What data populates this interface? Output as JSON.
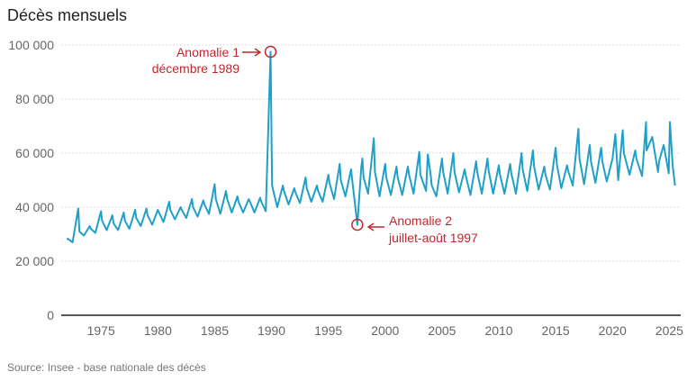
{
  "title": "Décès mensuels",
  "source": "Source: Insee - base nationale des décès",
  "colors": {
    "line": "#1fa0c8",
    "annotation": "#c0272d",
    "grid": "#dddddd",
    "axis": "#222222"
  },
  "chart_data": {
    "type": "line",
    "title": "Décès mensuels",
    "xlabel": "",
    "ylabel": "",
    "xlim": [
      1971.5,
      2026.0
    ],
    "ylim": [
      0,
      100000
    ],
    "grid": "horizontal",
    "x_ticks": [
      1975,
      1980,
      1985,
      1990,
      1995,
      2000,
      2005,
      2010,
      2015,
      2020,
      2025
    ],
    "y_ticks": [
      0,
      20000,
      40000,
      60000,
      80000,
      100000
    ],
    "y_tick_labels": [
      "0",
      "20 000",
      "40 000",
      "60 000",
      "80 000",
      "100 000"
    ],
    "series": [
      {
        "color": "#1fa0c8",
        "x": [
          1972.0,
          1972.5,
          1973.0,
          1973.1,
          1973.5,
          1974.0,
          1974.1,
          1974.5,
          1975.0,
          1975.1,
          1975.5,
          1976.0,
          1976.1,
          1976.5,
          1977.0,
          1977.1,
          1977.5,
          1978.0,
          1978.1,
          1978.5,
          1979.0,
          1979.1,
          1979.5,
          1980.0,
          1980.1,
          1980.5,
          1981.0,
          1981.1,
          1981.5,
          1982.0,
          1982.1,
          1982.5,
          1983.0,
          1983.1,
          1983.5,
          1984.0,
          1984.1,
          1984.5,
          1985.0,
          1985.1,
          1985.5,
          1986.0,
          1986.1,
          1986.5,
          1987.0,
          1987.1,
          1987.5,
          1988.0,
          1988.1,
          1988.5,
          1989.0,
          1989.1,
          1989.5,
          1989.92,
          1990.05,
          1990.5,
          1991.0,
          1991.1,
          1991.5,
          1992.0,
          1992.1,
          1992.5,
          1993.0,
          1993.1,
          1993.5,
          1994.0,
          1994.1,
          1994.5,
          1995.0,
          1995.1,
          1995.5,
          1996.0,
          1996.1,
          1996.5,
          1997.0,
          1997.1,
          1997.55,
          1997.9,
          1998.0,
          1998.1,
          1998.5,
          1999.0,
          1999.1,
          1999.5,
          2000.0,
          2000.1,
          2000.5,
          2001.0,
          2001.1,
          2001.5,
          2002.0,
          2002.1,
          2002.5,
          2003.0,
          2003.1,
          2003.6,
          2003.75,
          2004.0,
          2004.1,
          2004.5,
          2005.0,
          2005.1,
          2005.5,
          2006.0,
          2006.1,
          2006.5,
          2007.0,
          2007.1,
          2007.5,
          2008.0,
          2008.1,
          2008.5,
          2009.0,
          2009.1,
          2009.5,
          2010.0,
          2010.1,
          2010.5,
          2011.0,
          2011.1,
          2011.5,
          2012.0,
          2012.1,
          2012.5,
          2013.0,
          2013.1,
          2013.5,
          2014.0,
          2014.1,
          2014.5,
          2015.0,
          2015.1,
          2015.5,
          2016.0,
          2016.1,
          2016.5,
          2017.0,
          2017.1,
          2017.5,
          2018.0,
          2018.1,
          2018.5,
          2019.0,
          2019.1,
          2019.5,
          2020.0,
          2020.25,
          2020.5,
          2020.9,
          2021.0,
          2021.5,
          2022.0,
          2022.1,
          2022.6,
          2022.95,
          2023.0,
          2023.5,
          2024.0,
          2024.1,
          2024.5,
          2024.95,
          2025.05,
          2025.3,
          2025.5
        ],
        "values": [
          28500,
          27000,
          39500,
          31000,
          29500,
          33000,
          32000,
          30500,
          38500,
          35000,
          31500,
          37000,
          34000,
          31500,
          38000,
          35000,
          32000,
          39000,
          36000,
          33000,
          39500,
          37000,
          33500,
          39000,
          38000,
          34500,
          42000,
          39000,
          35500,
          40000,
          39000,
          36000,
          43000,
          40000,
          36500,
          42500,
          41000,
          37500,
          48500,
          43000,
          37500,
          46000,
          43000,
          38000,
          44000,
          42000,
          38000,
          43000,
          42000,
          38000,
          43500,
          42000,
          38500,
          97500,
          48000,
          40000,
          48000,
          46000,
          41000,
          47000,
          45500,
          41500,
          51000,
          47000,
          42000,
          48000,
          46000,
          42000,
          52000,
          49000,
          43000,
          56000,
          50000,
          44000,
          54000,
          50000,
          33500,
          55000,
          58000,
          51000,
          45000,
          65500,
          53000,
          44000,
          56000,
          51000,
          44500,
          55000,
          51000,
          44500,
          55000,
          52000,
          45000,
          60500,
          52000,
          46000,
          59500,
          52000,
          48000,
          44000,
          58000,
          53000,
          45000,
          60000,
          53000,
          45500,
          54000,
          51500,
          44500,
          57000,
          53000,
          45000,
          58000,
          53500,
          45000,
          55500,
          52000,
          45000,
          56000,
          52500,
          45000,
          60000,
          54000,
          46000,
          61000,
          55000,
          46500,
          55000,
          52000,
          46500,
          62000,
          56000,
          47000,
          55500,
          53500,
          48000,
          69000,
          58000,
          48500,
          63000,
          57000,
          49000,
          62000,
          57000,
          49500,
          58000,
          67000,
          50000,
          68500,
          60000,
          52000,
          61000,
          58000,
          51500,
          71500,
          61000,
          66000,
          53000,
          57000,
          63000,
          52500,
          71500,
          55000,
          48000
        ]
      }
    ],
    "annotations": [
      {
        "lines": [
          "Anomalie 1",
          "décembre 1989"
        ],
        "x": 1989.92,
        "y": 97500
      },
      {
        "lines": [
          "Anomalie 2",
          "juillet-août 1997"
        ],
        "x": 1997.55,
        "y": 33500
      }
    ]
  }
}
